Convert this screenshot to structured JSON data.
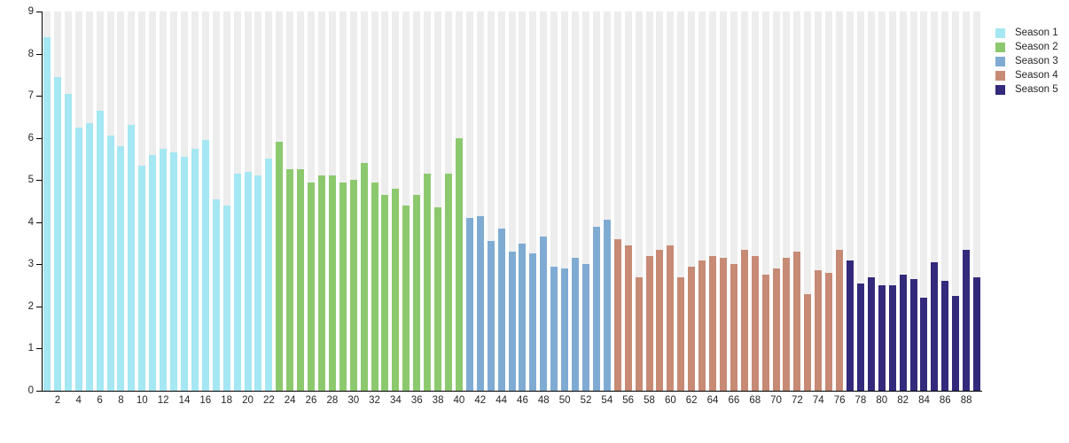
{
  "chart_data": {
    "type": "bar",
    "title": "",
    "xlabel": "",
    "ylabel": "",
    "xlim": [
      1,
      89
    ],
    "ylim": [
      0,
      9
    ],
    "grid": "striped-columns",
    "legend_position": "top-right",
    "x_axis_tick_labels": [
      2,
      4,
      6,
      8,
      10,
      12,
      14,
      16,
      18,
      20,
      22,
      24,
      26,
      28,
      30,
      32,
      34,
      36,
      38,
      40,
      42,
      44,
      46,
      48,
      50,
      52,
      54,
      56,
      58,
      60,
      62,
      64,
      66,
      68,
      70,
      72,
      74,
      76,
      78,
      80,
      82,
      84,
      86,
      88
    ],
    "y_axis_ticks": [
      0,
      1,
      2,
      3,
      4,
      5,
      6,
      7,
      8,
      9
    ],
    "series": [
      {
        "name": "Season 1",
        "color": "#a5e7f2",
        "first_episode": 1,
        "values": [
          8.4,
          7.45,
          7.05,
          6.25,
          6.35,
          6.65,
          6.05,
          5.8,
          6.3,
          5.35,
          5.6,
          5.75,
          5.65,
          5.55,
          5.75,
          5.95,
          4.55,
          4.4,
          5.15,
          5.2,
          5.1,
          5.5
        ]
      },
      {
        "name": "Season 2",
        "color": "#8cc96e",
        "first_episode": 23,
        "values": [
          5.9,
          5.25,
          5.25,
          4.95,
          5.1,
          5.1,
          4.95,
          5.0,
          5.4,
          4.95,
          4.65,
          4.8,
          4.4,
          4.65,
          5.15,
          4.35,
          5.15,
          6.0
        ]
      },
      {
        "name": "Season 3",
        "color": "#7fabd3",
        "first_episode": 41,
        "values": [
          4.1,
          4.15,
          3.55,
          3.85,
          3.3,
          3.5,
          3.25,
          3.65,
          2.95,
          2.9,
          3.15,
          3.0,
          3.9,
          4.05
        ]
      },
      {
        "name": "Season 4",
        "color": "#c78a75",
        "first_episode": 55,
        "values": [
          3.6,
          3.45,
          2.7,
          3.2,
          3.35,
          3.45,
          2.7,
          2.95,
          3.1,
          3.2,
          3.15,
          3.0,
          3.35,
          3.2,
          2.75,
          2.9,
          3.15,
          3.3,
          2.3,
          2.85,
          2.8,
          3.35
        ]
      },
      {
        "name": "Season 5",
        "color": "#332a7b",
        "first_episode": 77,
        "values": [
          3.1,
          2.55,
          2.7,
          2.5,
          2.5,
          2.75,
          2.65,
          2.2,
          3.05,
          2.6,
          2.25,
          3.35,
          2.7
        ]
      }
    ]
  },
  "legend": {
    "entries": [
      {
        "label": "Season 1",
        "color": "#a5e7f2"
      },
      {
        "label": "Season 2",
        "color": "#8cc96e"
      },
      {
        "label": "Season 3",
        "color": "#7fabd3"
      },
      {
        "label": "Season 4",
        "color": "#c78a75"
      },
      {
        "label": "Season 5",
        "color": "#332a7b"
      }
    ]
  },
  "colors": {
    "background": "#ffffff",
    "column_stripe": "#ededed",
    "axis": "#000000",
    "tick_text": "#262626"
  }
}
